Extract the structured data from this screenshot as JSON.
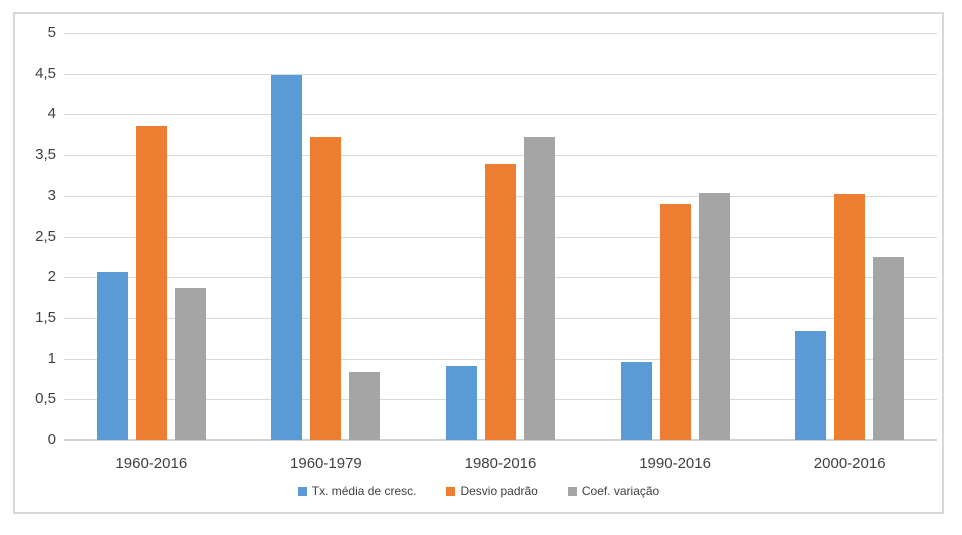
{
  "chart_data": {
    "type": "bar",
    "title": "",
    "categories": [
      "1960-2016",
      "1960-1979",
      "1980-2016",
      "1990-2016",
      "2000-2016"
    ],
    "series": [
      {
        "name": "Tx. média de cresc.",
        "color": "#5B9BD5",
        "values": [
          2.07,
          4.48,
          0.91,
          0.96,
          1.34
        ]
      },
      {
        "name": "Desvio padrão",
        "color": "#ED7D31",
        "values": [
          3.86,
          3.72,
          3.39,
          2.9,
          3.02
        ]
      },
      {
        "name": "Coef. variação",
        "color": "#A5A5A5",
        "values": [
          1.87,
          0.83,
          3.72,
          3.04,
          2.25
        ]
      }
    ],
    "xlabel": "",
    "ylabel": "",
    "ylim": [
      0,
      5
    ],
    "ytick_step": 0.5,
    "ytick_labels_top_to_bottom": [
      "5",
      "4,5",
      "4",
      "3,5",
      "3",
      "2,5",
      "2",
      "1,5",
      "1",
      "0,5",
      "0"
    ],
    "grid": true,
    "legend_position": "bottom",
    "style": {
      "gridline_color": "#D9D9D9",
      "axis_line_color": "#D2D2D2",
      "frame_border_color": "#D9D9D9",
      "text_color": "#404040",
      "background": "#ffffff"
    }
  }
}
